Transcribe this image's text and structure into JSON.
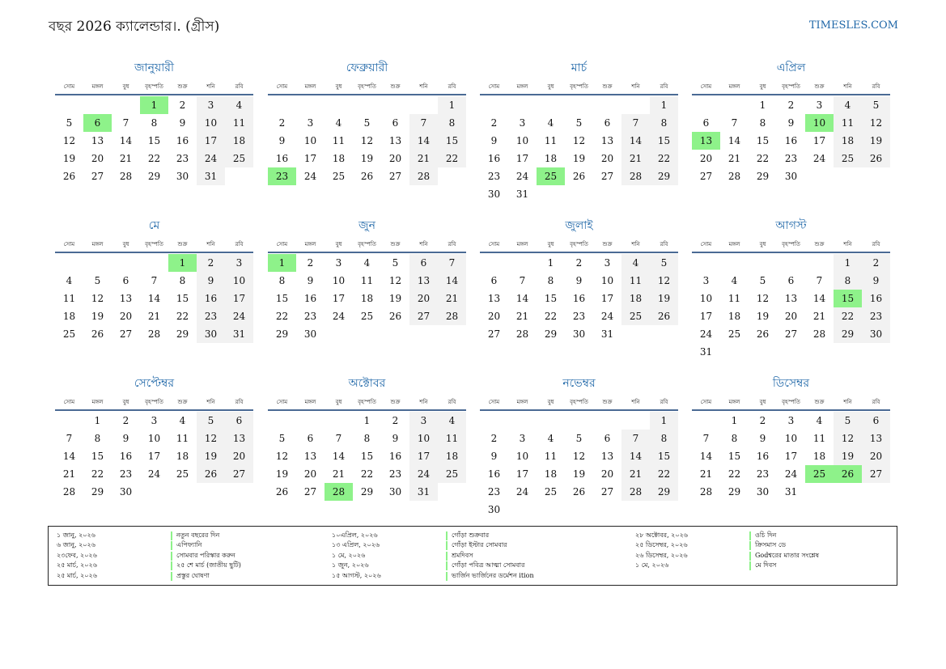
{
  "header": {
    "title": "বছর 2026 ক্যালেন্ডার।. (গ্রীস)",
    "site": "TIMESLES.COM"
  },
  "colors": {
    "accent": "#1f67a8",
    "holiday": "#8ef28a",
    "weekend": "#f2f2f2",
    "rule": "#4a6a94"
  },
  "weekdays": [
    "সোম",
    "মঙ্গল",
    "বুধ",
    "বৃহস্পতি",
    "শুক্র",
    "শনি",
    "রবি"
  ],
  "months": [
    {
      "name": "জানুয়ারী",
      "start": 3,
      "days": 31,
      "holidays": [
        1,
        6
      ]
    },
    {
      "name": "ফেব্রুয়ারী",
      "start": 6,
      "days": 28,
      "holidays": [
        23
      ]
    },
    {
      "name": "মার্চ",
      "start": 6,
      "days": 31,
      "holidays": [
        25
      ]
    },
    {
      "name": "এপ্রিল",
      "start": 2,
      "days": 30,
      "holidays": [
        10,
        13
      ]
    },
    {
      "name": "মে",
      "start": 4,
      "days": 31,
      "holidays": [
        1
      ]
    },
    {
      "name": "জুন",
      "start": 0,
      "days": 30,
      "holidays": [
        1
      ]
    },
    {
      "name": "জুলাই",
      "start": 2,
      "days": 31,
      "holidays": []
    },
    {
      "name": "আগস্ট",
      "start": 5,
      "days": 31,
      "holidays": [
        15
      ]
    },
    {
      "name": "সেপ্টেম্বর",
      "start": 1,
      "days": 30,
      "holidays": []
    },
    {
      "name": "অক্টোবর",
      "start": 3,
      "days": 31,
      "holidays": [
        28
      ]
    },
    {
      "name": "নভেম্বর",
      "start": 6,
      "days": 30,
      "holidays": []
    },
    {
      "name": "ডিসেম্বর",
      "start": 1,
      "days": 31,
      "holidays": [
        25,
        26
      ]
    }
  ],
  "legend": {
    "col1": [
      {
        "date": "১ জানু, ২০২৬",
        "name": "নতুন বছরের দিন"
      },
      {
        "date": "৬ জানু, ২০২৬",
        "name": "এপিফ্যানি"
      },
      {
        "date": "২৩ফেব, ২০২৬",
        "name": "সোমবার পরিস্কার করুন"
      },
      {
        "date": "২৫ মার্চ, ২০২৬",
        "name": "২৫ শে মার্চ (জাতীয় ছুটি)"
      },
      {
        "date": "২৫ মার্চ, ২০২৬",
        "name": "প্রস্তুর ঘোষণা"
      }
    ],
    "col2": [
      {
        "date": "১০এপ্রিল, ২০২৬",
        "name": "গোঁড়া শুক্রবার"
      },
      {
        "date": "১৩ এপ্রিল, ২০২৬",
        "name": "গোঁড়া ইস্টার সোমবার"
      },
      {
        "date": "১ মে, ২০২৬",
        "name": "শ্রমদিবস"
      },
      {
        "date": "১ জুন, ২০২৬",
        "name": "গোঁড়া পবিত্র আত্মা সোমবার"
      },
      {
        "date": "১৫ আগস্ট, ২০২৬",
        "name": "ভার্জিন ভার্জিনের ডর্মেশন ition"
      }
    ],
    "col3": [
      {
        "date": "২৮ অক্টোবর, ২০২৬",
        "name": "ওচি দিন"
      },
      {
        "date": "২৫ ডিসেম্বর, ২০২৬",
        "name": "ক্রিসমাস ডে"
      },
      {
        "date": "২৬ ডিসেম্বর, ২০২৬",
        "name": "Godশ্বরের মাতার সংশ্লেষ"
      },
      {
        "date": "১ মে, ২০২৬",
        "name": "মে দিবস"
      }
    ]
  }
}
